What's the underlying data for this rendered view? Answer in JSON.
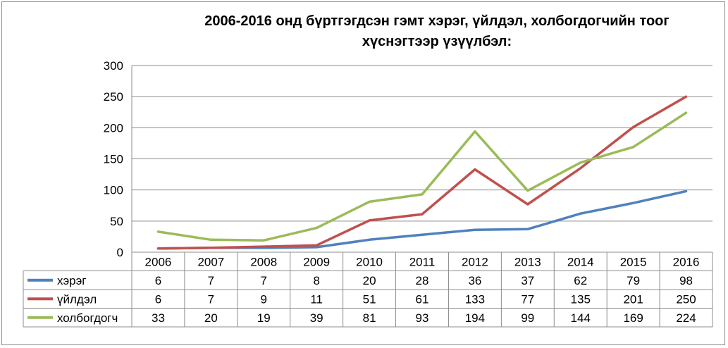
{
  "chart_data": {
    "type": "line",
    "title_lines": [
      "2006-2016 онд бүртгэгдсэн гэмт хэрэг, үйлдэл, холбогдогчийн тоог",
      "хүснэгтээр үзүүлбэл:"
    ],
    "categories": [
      "2006",
      "2007",
      "2008",
      "2009",
      "2010",
      "2011",
      "2012",
      "2013",
      "2014",
      "2015",
      "2016"
    ],
    "series": [
      {
        "name": "хэрэг",
        "color": "#4f81bd",
        "values": [
          6,
          7,
          7,
          8,
          20,
          28,
          36,
          37,
          62,
          79,
          98
        ]
      },
      {
        "name": "үйлдэл",
        "color": "#c0504d",
        "values": [
          6,
          7,
          9,
          11,
          51,
          61,
          133,
          77,
          135,
          201,
          250
        ]
      },
      {
        "name": "холбогдогч",
        "color": "#9bbb59",
        "values": [
          33,
          20,
          19,
          39,
          81,
          93,
          194,
          99,
          144,
          169,
          224
        ]
      }
    ],
    "y_ticks": [
      0,
      50,
      100,
      150,
      200,
      250,
      300
    ],
    "ylim": [
      0,
      300
    ],
    "grid": true,
    "legend": "data-table"
  }
}
